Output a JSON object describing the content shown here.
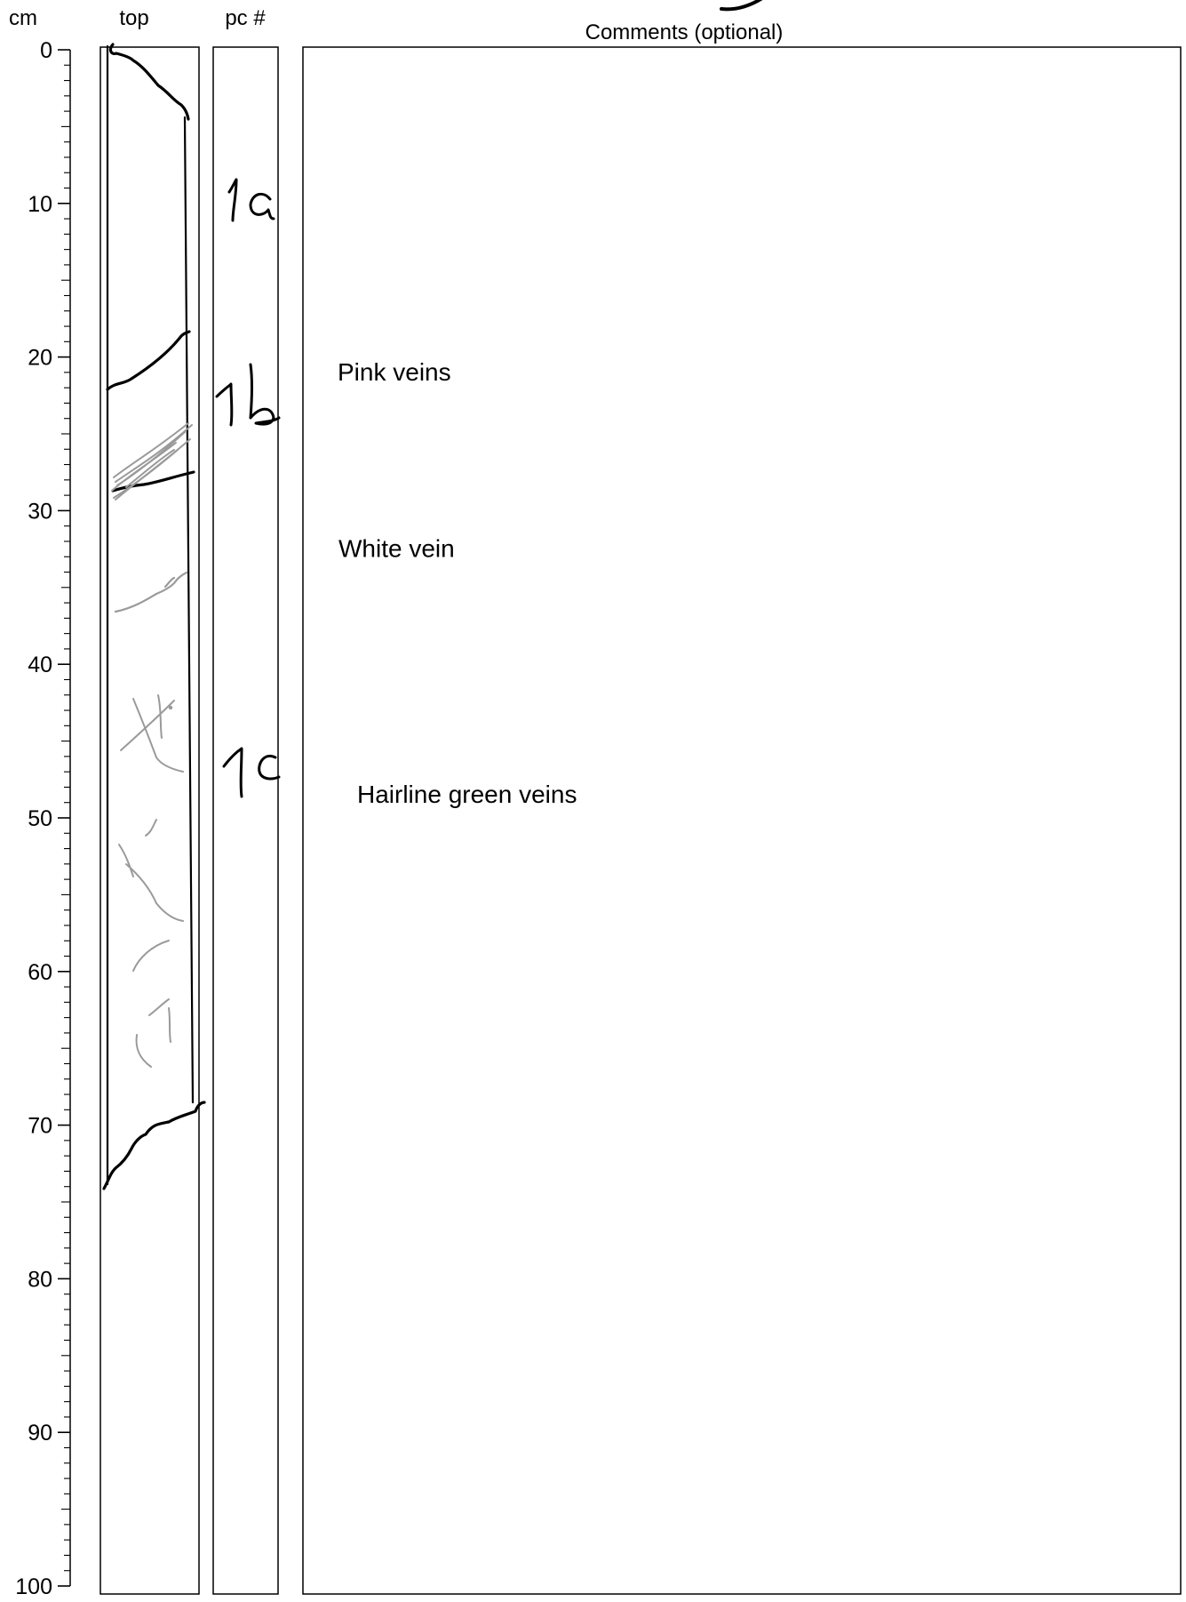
{
  "header": {
    "depth_unit_label": "cm",
    "top_label": "top",
    "piece_label": "pc #",
    "comments_label": "Comments (optional)"
  },
  "depth_scale": {
    "min": 0,
    "max": 100,
    "major_step": 10,
    "minor_step": 1,
    "labels": [
      "0",
      "10",
      "20",
      "30",
      "40",
      "50",
      "60",
      "70",
      "80",
      "90",
      "100"
    ]
  },
  "pieces": [
    {
      "label": "1a",
      "depth_cm": 10
    },
    {
      "label": "1b",
      "depth_cm": 22.5
    },
    {
      "label": "1c",
      "depth_cm": 46
    }
  ],
  "comments": [
    {
      "text": "Pink veins",
      "depth_cm": 21
    },
    {
      "text": "White  vein",
      "depth_cm": 32.5
    },
    {
      "text": "Hairline green veins",
      "depth_cm": 48.5
    }
  ],
  "colors": {
    "ink": "#000000",
    "vein_gray": "#999999",
    "background": "#ffffff"
  }
}
